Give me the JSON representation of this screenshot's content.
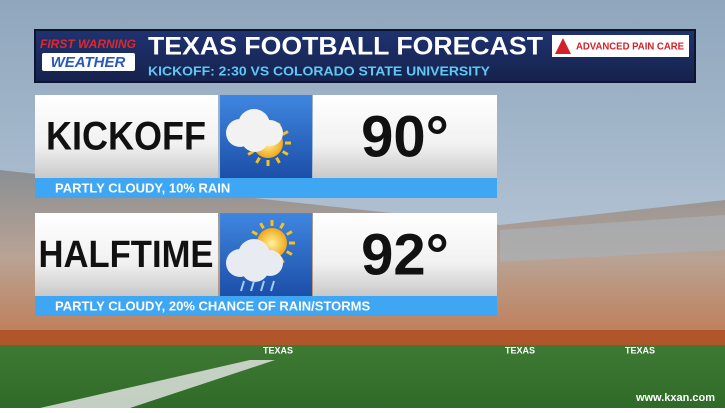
{
  "header": {
    "logo": {
      "line1": "FIRST WARNING",
      "line2": "WEATHER"
    },
    "title": "TEXAS FOOTBALL FORECAST",
    "subtitle": "KICKOFF: 2:30 VS COLORADO STATE UNIVERSITY",
    "sponsor": "ADVANCED PAIN CARE"
  },
  "rows": [
    {
      "label": "KICKOFF",
      "temperature": "90°",
      "condition": "PARTLY CLOUDY, 10% RAIN"
    },
    {
      "label": "HALFTIME",
      "temperature": "92°",
      "condition": "PARTLY CLOUDY, 20% CHANCE OF RAIN/STORMS"
    }
  ],
  "stadium_banner": "TEXAS",
  "watermark": "www.kxan.com"
}
